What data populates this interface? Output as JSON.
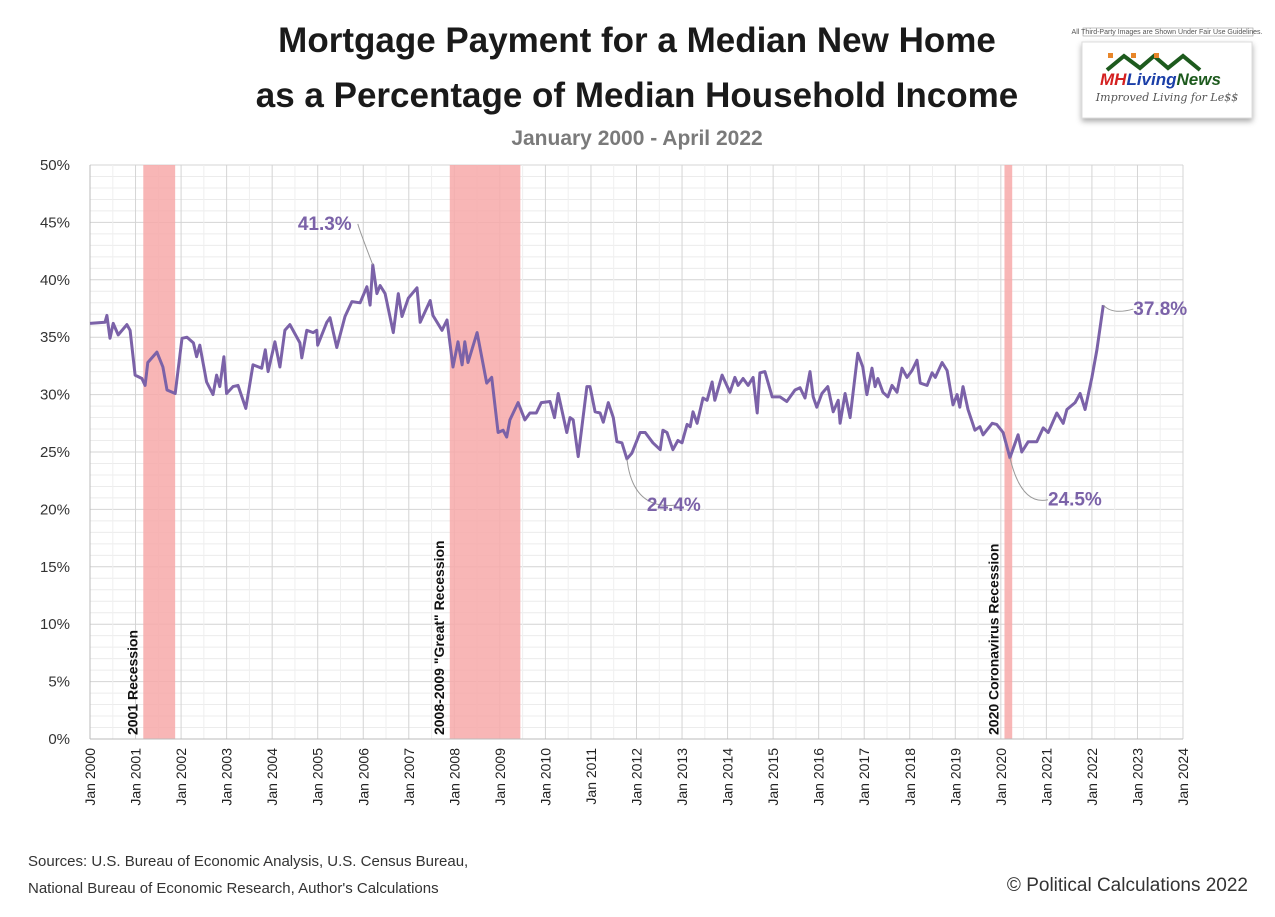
{
  "chart_data": {
    "type": "line",
    "title_line1": "Mortgage Payment for a Median New Home",
    "title_line2": "as a Percentage of Median Household Income",
    "subtitle": "January  2000 - April 2022",
    "xlabel": "",
    "ylabel": "",
    "xlim": [
      2000,
      2024
    ],
    "ylim": [
      0,
      50
    ],
    "grid": true,
    "y_ticks": [
      "0%",
      "5%",
      "10%",
      "15%",
      "20%",
      "25%",
      "30%",
      "35%",
      "40%",
      "45%",
      "50%"
    ],
    "x_ticks": [
      "Jan 2000",
      "Jan 2001",
      "Jan 2002",
      "Jan 2003",
      "Jan 2004",
      "Jan 2005",
      "Jan 2006",
      "Jan 2007",
      "Jan 2008",
      "Jan 2009",
      "Jan 2010",
      "Jan 2011",
      "Jan 2012",
      "Jan 2013",
      "Jan 2014",
      "Jan 2015",
      "Jan 2016",
      "Jan 2017",
      "Jan 2018",
      "Jan 2019",
      "Jan 2020",
      "Jan 2021",
      "Jan 2022",
      "Jan 2023",
      "Jan 2024"
    ],
    "line_color": "#7b62a8",
    "recession_color": "#f7a9a9",
    "recessions": [
      {
        "label": "2001 Recession",
        "start": 2001.17,
        "end": 2001.87
      },
      {
        "label": "2008-2009 \"Great\" Recession",
        "start": 2007.9,
        "end": 2009.45
      },
      {
        "label": "2020 Coronavirus Recession",
        "start": 2020.08,
        "end": 2020.25
      }
    ],
    "annotations": [
      {
        "label": "41.3%",
        "x": 2006.21,
        "y": 41.3
      },
      {
        "label": "24.4%",
        "x": 2011.79,
        "y": 24.4
      },
      {
        "label": "24.5%",
        "x": 2020.2,
        "y": 24.5
      },
      {
        "label": "37.8%",
        "x": 2022.25,
        "y": 37.8
      }
    ],
    "series": [
      {
        "name": "Mortgage payment % of income",
        "points": [
          [
            2000.0,
            36.2
          ],
          [
            2000.33,
            36.3
          ],
          [
            2000.37,
            36.9
          ],
          [
            2000.44,
            34.9
          ],
          [
            2000.51,
            36.2
          ],
          [
            2000.62,
            35.2
          ],
          [
            2000.81,
            36.1
          ],
          [
            2000.88,
            35.6
          ],
          [
            2000.99,
            31.7
          ],
          [
            2001.14,
            31.4
          ],
          [
            2001.21,
            30.8
          ],
          [
            2001.27,
            32.8
          ],
          [
            2001.47,
            33.7
          ],
          [
            2001.6,
            32.4
          ],
          [
            2001.69,
            30.4
          ],
          [
            2001.87,
            30.1
          ],
          [
            2002.02,
            34.9
          ],
          [
            2002.13,
            35.0
          ],
          [
            2002.27,
            34.5
          ],
          [
            2002.34,
            33.3
          ],
          [
            2002.41,
            34.3
          ],
          [
            2002.56,
            31.1
          ],
          [
            2002.7,
            30.0
          ],
          [
            2002.78,
            31.7
          ],
          [
            2002.85,
            30.7
          ],
          [
            2002.94,
            33.3
          ],
          [
            2003.0,
            30.1
          ],
          [
            2003.14,
            30.7
          ],
          [
            2003.25,
            30.8
          ],
          [
            2003.42,
            28.8
          ],
          [
            2003.58,
            32.6
          ],
          [
            2003.77,
            32.3
          ],
          [
            2003.85,
            33.9
          ],
          [
            2003.91,
            32.0
          ],
          [
            2004.06,
            34.6
          ],
          [
            2004.17,
            32.4
          ],
          [
            2004.28,
            35.6
          ],
          [
            2004.39,
            36.1
          ],
          [
            2004.61,
            34.5
          ],
          [
            2004.65,
            33.2
          ],
          [
            2004.76,
            35.6
          ],
          [
            2004.9,
            35.4
          ],
          [
            2004.98,
            35.6
          ],
          [
            2005.0,
            34.3
          ],
          [
            2005.2,
            36.3
          ],
          [
            2005.27,
            36.7
          ],
          [
            2005.42,
            34.1
          ],
          [
            2005.6,
            36.8
          ],
          [
            2005.75,
            38.1
          ],
          [
            2005.93,
            38.0
          ],
          [
            2006.08,
            39.4
          ],
          [
            2006.15,
            37.8
          ],
          [
            2006.21,
            41.3
          ],
          [
            2006.3,
            38.8
          ],
          [
            2006.37,
            39.5
          ],
          [
            2006.48,
            38.8
          ],
          [
            2006.66,
            35.4
          ],
          [
            2006.77,
            38.8
          ],
          [
            2006.85,
            36.8
          ],
          [
            2006.99,
            38.4
          ],
          [
            2007.18,
            39.3
          ],
          [
            2007.25,
            36.3
          ],
          [
            2007.47,
            38.2
          ],
          [
            2007.53,
            36.9
          ],
          [
            2007.73,
            35.6
          ],
          [
            2007.84,
            36.5
          ],
          [
            2007.97,
            32.4
          ],
          [
            2008.08,
            34.6
          ],
          [
            2008.17,
            32.6
          ],
          [
            2008.23,
            34.6
          ],
          [
            2008.3,
            32.8
          ],
          [
            2008.5,
            35.4
          ],
          [
            2008.71,
            31.0
          ],
          [
            2008.82,
            31.5
          ],
          [
            2008.96,
            26.7
          ],
          [
            2009.07,
            26.9
          ],
          [
            2009.15,
            26.3
          ],
          [
            2009.22,
            27.8
          ],
          [
            2009.4,
            29.3
          ],
          [
            2009.55,
            27.8
          ],
          [
            2009.66,
            28.4
          ],
          [
            2009.8,
            28.4
          ],
          [
            2009.91,
            29.3
          ],
          [
            2010.1,
            29.4
          ],
          [
            2010.2,
            28.0
          ],
          [
            2010.28,
            30.1
          ],
          [
            2010.47,
            26.7
          ],
          [
            2010.54,
            28.0
          ],
          [
            2010.61,
            27.8
          ],
          [
            2010.72,
            24.6
          ],
          [
            2010.91,
            30.7
          ],
          [
            2010.98,
            30.7
          ],
          [
            2011.09,
            28.5
          ],
          [
            2011.2,
            28.4
          ],
          [
            2011.27,
            27.6
          ],
          [
            2011.38,
            29.3
          ],
          [
            2011.49,
            28.0
          ],
          [
            2011.57,
            25.9
          ],
          [
            2011.68,
            25.8
          ],
          [
            2011.79,
            24.4
          ],
          [
            2011.9,
            24.9
          ],
          [
            2012.08,
            26.7
          ],
          [
            2012.19,
            26.7
          ],
          [
            2012.36,
            25.8
          ],
          [
            2012.52,
            25.2
          ],
          [
            2012.58,
            26.9
          ],
          [
            2012.67,
            26.7
          ],
          [
            2012.8,
            25.2
          ],
          [
            2012.91,
            26.0
          ],
          [
            2013.0,
            25.8
          ],
          [
            2013.11,
            27.4
          ],
          [
            2013.18,
            27.2
          ],
          [
            2013.24,
            28.5
          ],
          [
            2013.33,
            27.5
          ],
          [
            2013.46,
            29.7
          ],
          [
            2013.55,
            29.5
          ],
          [
            2013.66,
            31.1
          ],
          [
            2013.72,
            29.5
          ],
          [
            2013.88,
            31.7
          ],
          [
            2014.05,
            30.2
          ],
          [
            2014.16,
            31.5
          ],
          [
            2014.23,
            30.8
          ],
          [
            2014.34,
            31.4
          ],
          [
            2014.45,
            30.8
          ],
          [
            2014.56,
            31.5
          ],
          [
            2014.65,
            28.4
          ],
          [
            2014.71,
            31.9
          ],
          [
            2014.82,
            32.0
          ],
          [
            2014.98,
            29.8
          ],
          [
            2015.15,
            29.8
          ],
          [
            2015.3,
            29.4
          ],
          [
            2015.48,
            30.4
          ],
          [
            2015.59,
            30.6
          ],
          [
            2015.7,
            29.7
          ],
          [
            2015.81,
            32.0
          ],
          [
            2015.88,
            29.8
          ],
          [
            2015.96,
            28.9
          ],
          [
            2016.07,
            30.1
          ],
          [
            2016.2,
            30.7
          ],
          [
            2016.32,
            28.5
          ],
          [
            2016.43,
            29.5
          ],
          [
            2016.47,
            27.5
          ],
          [
            2016.58,
            30.1
          ],
          [
            2016.69,
            28.0
          ],
          [
            2016.86,
            33.6
          ],
          [
            2016.97,
            32.4
          ],
          [
            2017.06,
            30.0
          ],
          [
            2017.17,
            32.3
          ],
          [
            2017.24,
            30.7
          ],
          [
            2017.3,
            31.4
          ],
          [
            2017.41,
            30.2
          ],
          [
            2017.52,
            29.8
          ],
          [
            2017.61,
            30.8
          ],
          [
            2017.72,
            30.2
          ],
          [
            2017.83,
            32.3
          ],
          [
            2017.94,
            31.5
          ],
          [
            2018.05,
            32.1
          ],
          [
            2018.16,
            33.0
          ],
          [
            2018.23,
            31.0
          ],
          [
            2018.38,
            30.8
          ],
          [
            2018.49,
            31.9
          ],
          [
            2018.56,
            31.5
          ],
          [
            2018.71,
            32.8
          ],
          [
            2018.82,
            32.1
          ],
          [
            2018.95,
            29.1
          ],
          [
            2019.04,
            30.0
          ],
          [
            2019.1,
            28.9
          ],
          [
            2019.17,
            30.7
          ],
          [
            2019.28,
            28.7
          ],
          [
            2019.43,
            26.9
          ],
          [
            2019.54,
            27.2
          ],
          [
            2019.61,
            26.5
          ],
          [
            2019.81,
            27.5
          ],
          [
            2019.91,
            27.4
          ],
          [
            2020.05,
            26.7
          ],
          [
            2020.2,
            24.5
          ],
          [
            2020.38,
            26.5
          ],
          [
            2020.46,
            25.0
          ],
          [
            2020.6,
            25.9
          ],
          [
            2020.79,
            25.9
          ],
          [
            2020.93,
            27.1
          ],
          [
            2021.04,
            26.7
          ],
          [
            2021.23,
            28.4
          ],
          [
            2021.37,
            27.5
          ],
          [
            2021.45,
            28.7
          ],
          [
            2021.63,
            29.3
          ],
          [
            2021.74,
            30.1
          ],
          [
            2021.85,
            28.7
          ],
          [
            2022.0,
            31.5
          ],
          [
            2022.11,
            33.9
          ],
          [
            2022.25,
            37.8
          ]
        ]
      }
    ]
  },
  "logo": {
    "notice": "All Third-Party Images are Shown Under Fair Use Guidelines.",
    "name_mh": "MH",
    "name_living": "Living",
    "name_news": "News",
    "tagline": "Improved Living for Le$$"
  },
  "footer": {
    "sources_line1": "Sources: U.S. Bureau of Economic Analysis, U.S. Census Bureau,",
    "sources_line2": "National Bureau of Economic Research, Author's Calculations",
    "copyright": "© Political Calculations 2022"
  }
}
